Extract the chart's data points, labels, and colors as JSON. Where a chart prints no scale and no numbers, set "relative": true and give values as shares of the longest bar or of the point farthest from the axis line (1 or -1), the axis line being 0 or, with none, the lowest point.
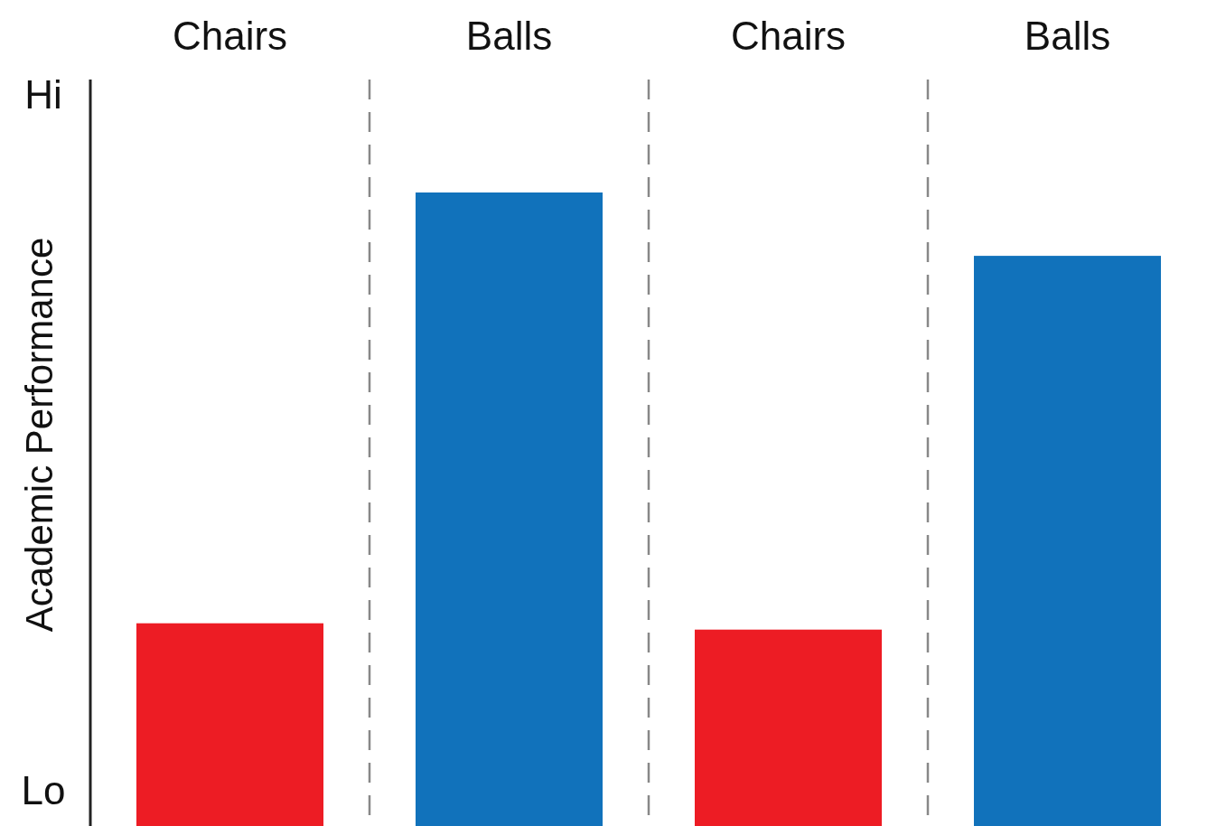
{
  "chart_data": {
    "type": "bar",
    "ylabel": "Academic Performance",
    "categories": [
      "Chairs",
      "Balls",
      "Chairs",
      "Balls"
    ],
    "values": [
      0.32,
      1,
      0.31,
      0.9
    ],
    "colors": [
      "#ed1c24",
      "#1172bb",
      "#ed1c24",
      "#1172bb"
    ],
    "relative": true,
    "annotations": [
      "Hi",
      "Lo"
    ],
    "grid": "x"
  }
}
